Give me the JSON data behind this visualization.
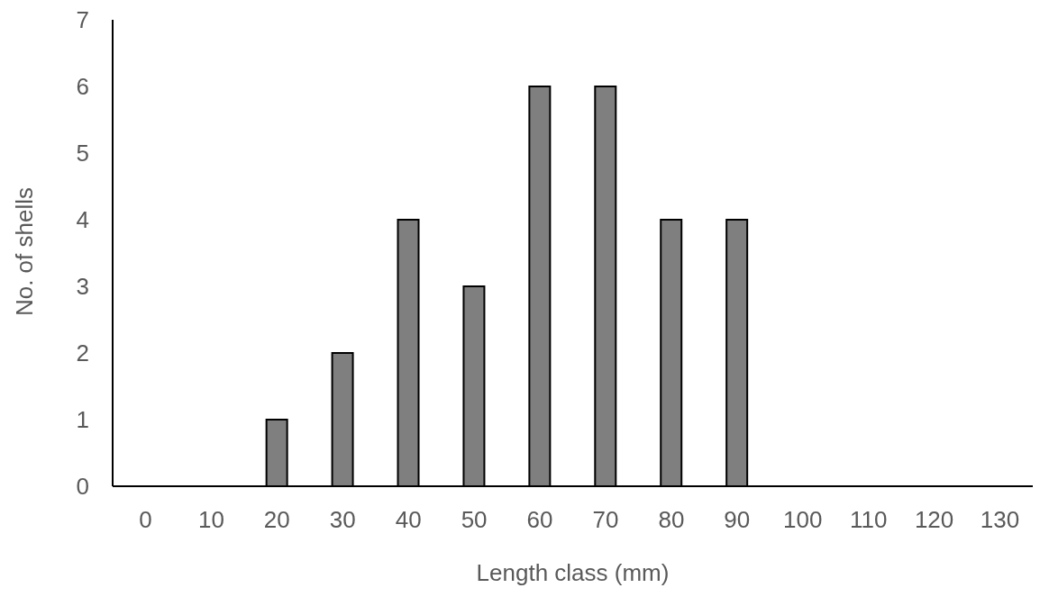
{
  "chart_data": {
    "type": "bar",
    "xlabel": "Length class (mm)",
    "ylabel": "No. of shells",
    "categories": [
      "0",
      "10",
      "20",
      "30",
      "40",
      "50",
      "60",
      "70",
      "80",
      "90",
      "100",
      "110",
      "120",
      "130"
    ],
    "values": [
      0,
      0,
      1,
      2,
      4,
      3,
      6,
      6,
      4,
      4,
      0,
      0,
      0,
      0
    ],
    "color": "#7f7f7f",
    "ylim": [
      0,
      7
    ],
    "yticks": [
      0,
      1,
      2,
      3,
      4,
      5,
      6,
      7
    ],
    "grid": false,
    "legend": false
  }
}
